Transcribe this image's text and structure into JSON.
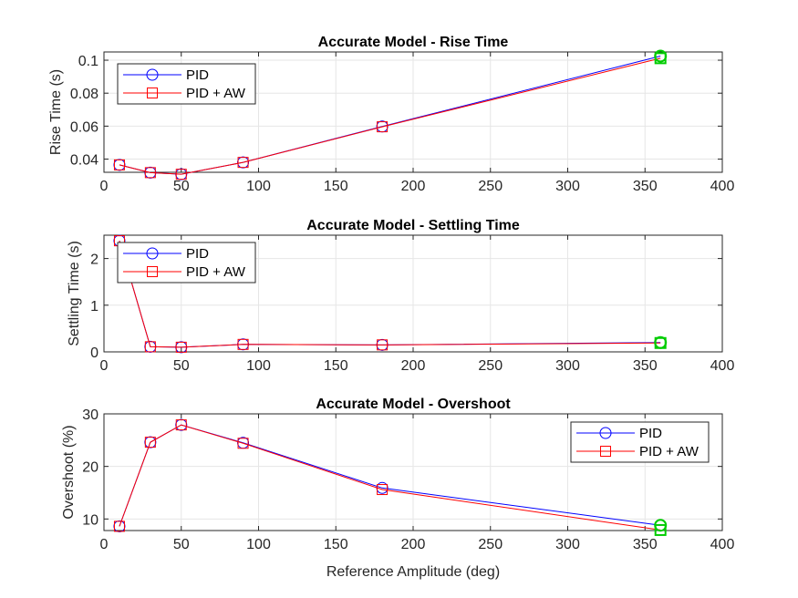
{
  "chart_data": [
    {
      "type": "line",
      "title": "Accurate Model - Rise Time",
      "xlabel": "",
      "ylabel": "Rise Time (s)",
      "xlim": [
        0,
        400
      ],
      "ylim": [
        0.032,
        0.105
      ],
      "xticks": [
        0,
        50,
        100,
        150,
        200,
        250,
        300,
        350,
        400
      ],
      "yticks": [
        0.04,
        0.06,
        0.08,
        0.1
      ],
      "ytick_labels": [
        "0.04",
        "0.06",
        "0.08",
        "0.1"
      ],
      "grid": true,
      "legend_position": "top-left",
      "x": [
        10,
        30,
        50,
        90,
        180,
        360
      ],
      "series": [
        {
          "name": "PID",
          "values": [
            0.0365,
            0.0318,
            0.0308,
            0.038,
            0.0598,
            0.1025
          ],
          "color": "#0000ff",
          "marker": "circle"
        },
        {
          "name": "PID + AW",
          "values": [
            0.0365,
            0.0318,
            0.0308,
            0.038,
            0.0596,
            0.1012
          ],
          "color": "#ff0000",
          "marker": "square"
        }
      ],
      "highlight": {
        "x": 360,
        "color": "#00cc00"
      }
    },
    {
      "type": "line",
      "title": "Accurate Model - Settling Time",
      "xlabel": "",
      "ylabel": "Settling Time (s)",
      "xlim": [
        0,
        400
      ],
      "ylim": [
        0,
        2.5
      ],
      "xticks": [
        0,
        50,
        100,
        150,
        200,
        250,
        300,
        350,
        400
      ],
      "yticks": [
        0,
        1,
        2
      ],
      "ytick_labels": [
        "0",
        "1",
        "2"
      ],
      "grid": true,
      "legend_position": "top-left",
      "x": [
        10,
        30,
        50,
        90,
        180,
        360
      ],
      "series": [
        {
          "name": "PID",
          "values": [
            2.38,
            0.11,
            0.1,
            0.16,
            0.15,
            0.2
          ],
          "color": "#0000ff",
          "marker": "circle"
        },
        {
          "name": "PID + AW",
          "values": [
            2.38,
            0.11,
            0.1,
            0.16,
            0.15,
            0.19
          ],
          "color": "#ff0000",
          "marker": "square"
        }
      ],
      "highlight": {
        "x": 360,
        "color": "#00cc00"
      }
    },
    {
      "type": "line",
      "title": "Accurate Model - Overshoot",
      "xlabel": "Reference Amplitude (deg)",
      "ylabel": "Overshoot (%)",
      "xlim": [
        0,
        400
      ],
      "ylim": [
        7.8,
        30
      ],
      "xticks": [
        0,
        50,
        100,
        150,
        200,
        250,
        300,
        350,
        400
      ],
      "yticks": [
        10,
        20,
        30
      ],
      "ytick_labels": [
        "10",
        "20",
        "30"
      ],
      "grid": true,
      "legend_position": "top-right",
      "x": [
        10,
        30,
        50,
        90,
        180,
        360
      ],
      "series": [
        {
          "name": "PID",
          "values": [
            8.6,
            24.6,
            27.9,
            24.5,
            15.9,
            8.8
          ],
          "color": "#0000ff",
          "marker": "circle"
        },
        {
          "name": "PID + AW",
          "values": [
            8.6,
            24.6,
            27.9,
            24.4,
            15.6,
            7.9
          ],
          "color": "#ff0000",
          "marker": "square"
        }
      ],
      "highlight": {
        "x": 360,
        "color": "#00cc00"
      }
    }
  ]
}
